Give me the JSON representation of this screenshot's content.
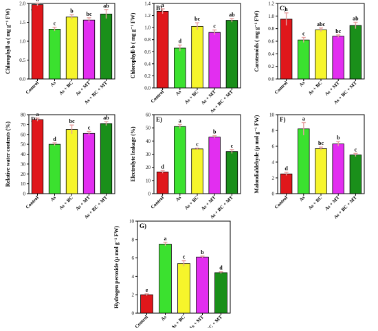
{
  "figure": {
    "treatments": [
      "Control",
      "As",
      "As + BC",
      "As + MT",
      "As + BC + MT"
    ],
    "colors": [
      "#e0171b",
      "#3be12f",
      "#f6f52b",
      "#e22ef0",
      "#1a8f1a"
    ],
    "errorbar_color": "#e6a0a0"
  },
  "chart_data": [
    {
      "type": "bar",
      "panel_label": "A)",
      "title": "",
      "xlabel": "",
      "ylabel": "Chlorophyll-a ( mg g⁻¹ FW)",
      "categories": [
        "Control",
        "As",
        "As + BC",
        "As + MT",
        "As + BC + MT"
      ],
      "values": [
        1.97,
        1.32,
        1.64,
        1.56,
        1.72
      ],
      "errors": [
        0.04,
        0.05,
        0.06,
        0.06,
        0.12
      ],
      "letters": [
        "a",
        "c",
        "b",
        "bc",
        "ab"
      ],
      "ylim": [
        0,
        2.0
      ],
      "yticks": [
        0.0,
        0.5,
        1.0,
        1.5,
        2.0
      ],
      "ytick_labels": [
        "0.0",
        "0.5",
        "1.0",
        "1.5",
        "2.0"
      ],
      "grid": false
    },
    {
      "type": "bar",
      "panel_label": "B)",
      "title": "",
      "xlabel": "",
      "ylabel": "Chlorophyll-b ( mg g⁻¹ FW)",
      "categories": [
        "Control",
        "As",
        "As + BC",
        "As + MT",
        "As + BC + MT"
      ],
      "values": [
        1.27,
        0.66,
        1.02,
        0.92,
        1.12
      ],
      "errors": [
        0.04,
        0.05,
        0.06,
        0.04,
        0.03
      ],
      "letters": [
        "a",
        "d",
        "bc",
        "c",
        "ab"
      ],
      "ylim": [
        0,
        1.4
      ],
      "yticks": [
        0.0,
        0.2,
        0.4,
        0.6,
        0.8,
        1.0,
        1.2,
        1.4
      ],
      "ytick_labels": [
        "0.0",
        "0.2",
        "0.4",
        "0.6",
        "0.8",
        "1.0",
        "1.2",
        "1.4"
      ],
      "grid": false
    },
    {
      "type": "bar",
      "panel_label": "C)",
      "title": "",
      "xlabel": "",
      "ylabel": "Carotenoids ( mg g⁻¹ FW)",
      "categories": [
        "Control",
        "As",
        "As + BC",
        "As + MT",
        "As + BC + MT"
      ],
      "values": [
        0.95,
        0.62,
        0.78,
        0.68,
        0.85
      ],
      "errors": [
        0.1,
        0.04,
        0.03,
        0.02,
        0.05
      ],
      "letters": [
        "a",
        "c",
        "abc",
        "bc",
        "ab"
      ],
      "ylim": [
        0,
        1.2
      ],
      "yticks": [
        0.0,
        0.2,
        0.4,
        0.6,
        0.8,
        1.0,
        1.2
      ],
      "ytick_labels": [
        "0.0",
        "0.2",
        "0.4",
        "0.6",
        "0.8",
        "1.0",
        "1.2"
      ],
      "grid": false
    },
    {
      "type": "bar",
      "panel_label": "D)",
      "title": "",
      "xlabel": "",
      "ylabel": "Relative water contents (%)",
      "categories": [
        "Control",
        "As",
        "As + BC",
        "As + MT",
        "As + BC + MT"
      ],
      "values": [
        75,
        50,
        65,
        61,
        71
      ],
      "errors": [
        1.5,
        1.5,
        4.5,
        2.0,
        2.0
      ],
      "letters": [
        "a",
        "d",
        "bc",
        "c",
        "ab"
      ],
      "ylim": [
        0,
        80
      ],
      "yticks": [
        0,
        10,
        20,
        30,
        40,
        50,
        60,
        70,
        80
      ],
      "ytick_labels": [
        "0",
        "10",
        "20",
        "30",
        "40",
        "50",
        "60",
        "70",
        "80"
      ],
      "grid": false
    },
    {
      "type": "bar",
      "panel_label": "E)",
      "title": "",
      "xlabel": "",
      "ylabel": "Electrolyte leakage (%)",
      "categories": [
        "Control",
        "As",
        "As + BC",
        "As + MT",
        "As + BC + MT"
      ],
      "values": [
        16.5,
        51,
        34,
        43,
        32
      ],
      "errors": [
        1.0,
        1.5,
        0.6,
        1.0,
        1.5
      ],
      "letters": [
        "d",
        "a",
        "c",
        "b",
        "c"
      ],
      "ylim": [
        0,
        60
      ],
      "yticks": [
        0,
        10,
        20,
        30,
        40,
        50,
        60
      ],
      "ytick_labels": [
        "0",
        "10",
        "20",
        "30",
        "40",
        "50",
        "60"
      ],
      "grid": false
    },
    {
      "type": "bar",
      "panel_label": "F)",
      "title": "",
      "xlabel": "",
      "ylabel": "Malondialdehyde (µ mol g⁻¹ FW)",
      "categories": [
        "Control",
        "As",
        "As + BC",
        "As + MT",
        "As + BC + MT"
      ],
      "values": [
        2.5,
        8.2,
        5.7,
        6.3,
        4.9
      ],
      "errors": [
        0.2,
        0.8,
        0.2,
        0.3,
        0.2
      ],
      "letters": [
        "d",
        "a",
        "bc",
        "b",
        "c"
      ],
      "ylim": [
        0,
        10
      ],
      "yticks": [
        0,
        2,
        4,
        6,
        8,
        10
      ],
      "ytick_labels": [
        "0",
        "2",
        "4",
        "6",
        "8",
        "10"
      ],
      "grid": false
    },
    {
      "type": "bar",
      "panel_label": "G)",
      "title": "",
      "xlabel": "",
      "ylabel": "Hydrogen peroxide (µ mol g⁻¹ FW)",
      "categories": [
        "Control",
        "As",
        "As + BC",
        "As + MT",
        "As + BC + MT"
      ],
      "values": [
        2.0,
        7.5,
        5.4,
        6.1,
        4.4
      ],
      "errors": [
        0.1,
        0.2,
        0.3,
        0.1,
        0.1
      ],
      "letters": [
        "e",
        "a",
        "c",
        "b",
        "d"
      ],
      "ylim": [
        0,
        10
      ],
      "yticks": [
        0,
        2,
        4,
        6,
        8,
        10
      ],
      "ytick_labels": [
        "0",
        "2",
        "4",
        "6",
        "8",
        "10"
      ],
      "grid": false
    }
  ]
}
